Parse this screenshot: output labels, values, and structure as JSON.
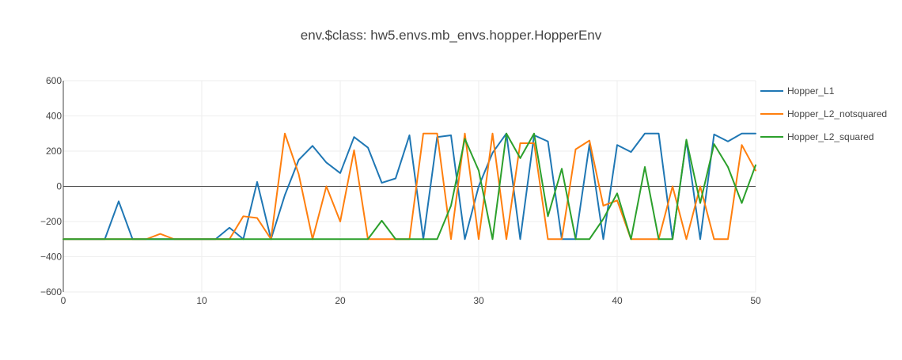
{
  "chart_data": {
    "type": "line",
    "title": "env.$class: hw5.envs.mb_envs.hopper.HopperEnv",
    "xlabel": "",
    "ylabel": "",
    "xlim": [
      0,
      50
    ],
    "ylim": [
      -600,
      600
    ],
    "xticks": [
      0,
      10,
      20,
      30,
      40,
      50
    ],
    "yticks": [
      -600,
      -400,
      -200,
      0,
      200,
      400,
      600
    ],
    "ytick_labels": [
      "−600",
      "−400",
      "−200",
      "0",
      "200",
      "400",
      "600"
    ],
    "grid": true,
    "zero_line": true,
    "legend_position": "top-right",
    "x": [
      0,
      1,
      2,
      3,
      4,
      5,
      6,
      7,
      8,
      9,
      10,
      11,
      12,
      13,
      14,
      15,
      16,
      17,
      18,
      19,
      20,
      21,
      22,
      23,
      24,
      25,
      26,
      27,
      28,
      29,
      30,
      31,
      32,
      33,
      34,
      35,
      36,
      37,
      38,
      39,
      40,
      41,
      42,
      43,
      44,
      45,
      46,
      47,
      48,
      49,
      50
    ],
    "series": [
      {
        "name": "Hopper_L1",
        "color": "#1f77b4",
        "values": [
          -300,
          -300,
          -300,
          -300,
          -85,
          -300,
          -300,
          -300,
          -300,
          -300,
          -300,
          -300,
          -235,
          -300,
          25,
          -300,
          -50,
          150,
          230,
          135,
          75,
          280,
          220,
          20,
          45,
          290,
          -300,
          280,
          290,
          -300,
          0,
          190,
          300,
          -300,
          290,
          255,
          -300,
          -300,
          240,
          -300,
          235,
          195,
          300,
          300,
          -300,
          260,
          -300,
          295,
          255,
          300,
          300
        ]
      },
      {
        "name": "Hopper_L2_notsquared",
        "color": "#ff7f0e",
        "values": [
          -300,
          -300,
          -300,
          -300,
          -300,
          -300,
          -300,
          -270,
          -300,
          -300,
          -300,
          -300,
          -300,
          -170,
          -180,
          -300,
          300,
          70,
          -300,
          0,
          -200,
          205,
          -300,
          -300,
          -300,
          -300,
          300,
          300,
          -300,
          300,
          -300,
          300,
          -300,
          245,
          245,
          -300,
          -300,
          210,
          260,
          -110,
          -80,
          -300,
          -300,
          -300,
          0,
          -300,
          0,
          -300,
          -300,
          235,
          90
        ]
      },
      {
        "name": "Hopper_L2_squared",
        "color": "#2ca02c",
        "values": [
          -300,
          -300,
          -300,
          -300,
          -300,
          -300,
          -300,
          -300,
          -300,
          -300,
          -300,
          -300,
          -300,
          -300,
          -300,
          -300,
          -300,
          -300,
          -300,
          -300,
          -300,
          -300,
          -300,
          -195,
          -300,
          -300,
          -300,
          -300,
          -110,
          270,
          90,
          -300,
          300,
          160,
          300,
          -170,
          100,
          -300,
          -300,
          -185,
          -40,
          -300,
          110,
          -300,
          -300,
          265,
          -95,
          240,
          110,
          -95,
          120
        ]
      }
    ]
  }
}
